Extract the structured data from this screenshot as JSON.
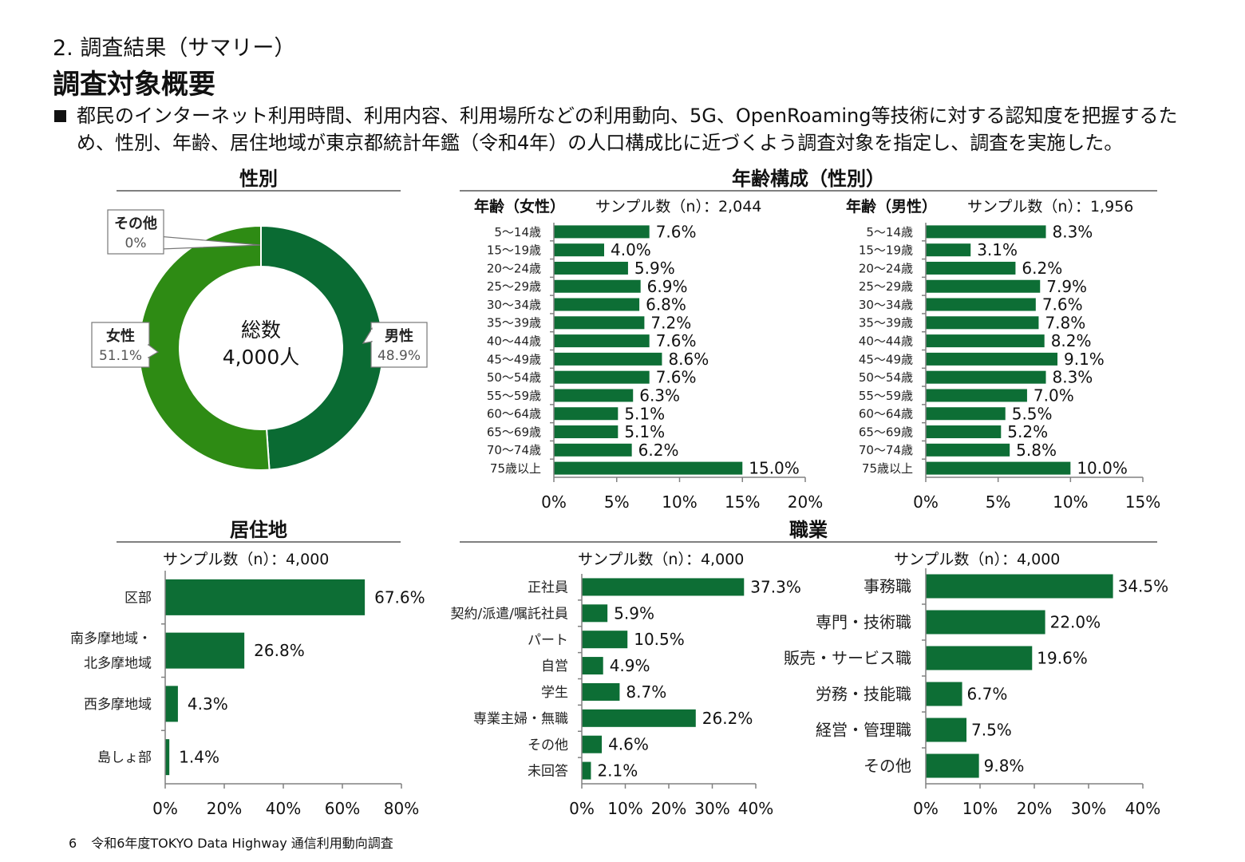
{
  "header": {
    "breadcrumb": "2. 調査結果（サマリー）",
    "title": "調査対象概要",
    "intro": "都民のインターネット利用時間、利用内容、利用場所などの利用動向、5G、OpenRoaming等技術に対する認知度を把握するため、性別、年齢、居住地域が東京都統計年鑑（令和4年）の人口構成比に近づくよう調査対象を指定し、調査を実施した。"
  },
  "sections": {
    "gender": "性別",
    "age": "年齢構成（性別）",
    "residence": "居住地",
    "occupation": "職業"
  },
  "footer": {
    "page_number": "6",
    "source": "令和6年度TOKYO Data Highway 通信利用動向調査"
  },
  "colors": {
    "dark_green": "#0a6b33",
    "light_green": "#2e8b14",
    "bar": "#0d6e35",
    "axis": "#808080"
  },
  "chart_data": [
    {
      "id": "gender",
      "type": "pie",
      "center_label": "総数",
      "center_value": "4,000人",
      "slices": [
        {
          "name": "男性",
          "value": 48.9,
          "label": "48.9%",
          "color": "#0a6b33"
        },
        {
          "name": "女性",
          "value": 51.1,
          "label": "51.1%",
          "color": "#2e8b14"
        },
        {
          "name": "その他",
          "value": 0,
          "label": "0%",
          "color": "#888888"
        }
      ]
    },
    {
      "id": "age_female",
      "type": "bar",
      "title": "年齢（女性）",
      "sample": "サンプル数（n）：2,044",
      "categories": [
        "5～14歳",
        "15～19歳",
        "20～24歳",
        "25～29歳",
        "30～34歳",
        "35～39歳",
        "40～44歳",
        "45～49歳",
        "50～54歳",
        "55～59歳",
        "60～64歳",
        "65～69歳",
        "70～74歳",
        "75歳以上"
      ],
      "values": [
        7.6,
        4.0,
        5.9,
        6.9,
        6.8,
        7.2,
        7.6,
        8.6,
        7.6,
        6.3,
        5.1,
        5.1,
        6.2,
        15.0
      ],
      "labels": [
        "7.6%",
        "4.0%",
        "5.9%",
        "6.9%",
        "6.8%",
        "7.2%",
        "7.6%",
        "8.6%",
        "7.6%",
        "6.3%",
        "5.1%",
        "5.1%",
        "6.2%",
        "15.0%"
      ],
      "xlim": [
        0,
        20
      ],
      "ticks": [
        0,
        5,
        10,
        15,
        20
      ],
      "tick_labels": [
        "0%",
        "5%",
        "10%",
        "15%",
        "20%"
      ]
    },
    {
      "id": "age_male",
      "type": "bar",
      "title": "年齢（男性）",
      "sample": "サンプル数（n）：1,956",
      "categories": [
        "5～14歳",
        "15～19歳",
        "20～24歳",
        "25～29歳",
        "30～34歳",
        "35～39歳",
        "40～44歳",
        "45～49歳",
        "50～54歳",
        "55～59歳",
        "60～64歳",
        "65～69歳",
        "70～74歳",
        "75歳以上"
      ],
      "values": [
        8.3,
        3.1,
        6.2,
        7.9,
        7.6,
        7.8,
        8.2,
        9.1,
        8.3,
        7.0,
        5.5,
        5.2,
        5.8,
        10.0
      ],
      "labels": [
        "8.3%",
        "3.1%",
        "6.2%",
        "7.9%",
        "7.6%",
        "7.8%",
        "8.2%",
        "9.1%",
        "8.3%",
        "7.0%",
        "5.5%",
        "5.2%",
        "5.8%",
        "10.0%"
      ],
      "xlim": [
        0,
        15
      ],
      "ticks": [
        0,
        5,
        10,
        15
      ],
      "tick_labels": [
        "0%",
        "5%",
        "10%",
        "15%"
      ]
    },
    {
      "id": "residence",
      "type": "bar",
      "sample": "サンプル数（n）：4,000",
      "categories": [
        "区部",
        "南多摩地域・\n北多摩地域",
        "西多摩地域",
        "島しょ部"
      ],
      "values": [
        67.6,
        26.8,
        4.3,
        1.4
      ],
      "labels": [
        "67.6%",
        "26.8%",
        "4.3%",
        "1.4%"
      ],
      "xlim": [
        0,
        80
      ],
      "ticks": [
        0,
        20,
        40,
        60,
        80
      ],
      "tick_labels": [
        "0%",
        "20%",
        "40%",
        "60%",
        "80%"
      ]
    },
    {
      "id": "employment",
      "type": "bar",
      "sample": "サンプル数（n）：4,000",
      "categories": [
        "正社員",
        "契約/派遣/嘱託社員",
        "パート",
        "自営",
        "学生",
        "専業主婦・無職",
        "その他",
        "未回答"
      ],
      "values": [
        37.3,
        5.9,
        10.5,
        4.9,
        8.7,
        26.2,
        4.6,
        2.1
      ],
      "labels": [
        "37.3%",
        "5.9%",
        "10.5%",
        "4.9%",
        "8.7%",
        "26.2%",
        "4.6%",
        "2.1%"
      ],
      "xlim": [
        0,
        40
      ],
      "ticks": [
        0,
        10,
        20,
        30,
        40
      ],
      "tick_labels": [
        "0%",
        "10%",
        "20%",
        "30%",
        "40%"
      ]
    },
    {
      "id": "job_type",
      "type": "bar",
      "sample": "サンプル数（n）：4,000",
      "categories": [
        "事務職",
        "専門・技術職",
        "販売・サービス職",
        "労務・技能職",
        "経営・管理職",
        "その他"
      ],
      "values": [
        34.5,
        22.0,
        19.6,
        6.7,
        7.5,
        9.8
      ],
      "labels": [
        "34.5%",
        "22.0%",
        "19.6%",
        "6.7%",
        "7.5%",
        "9.8%"
      ],
      "xlim": [
        0,
        40
      ],
      "ticks": [
        0,
        10,
        20,
        30,
        40
      ],
      "tick_labels": [
        "0%",
        "10%",
        "20%",
        "30%",
        "40%"
      ]
    }
  ]
}
